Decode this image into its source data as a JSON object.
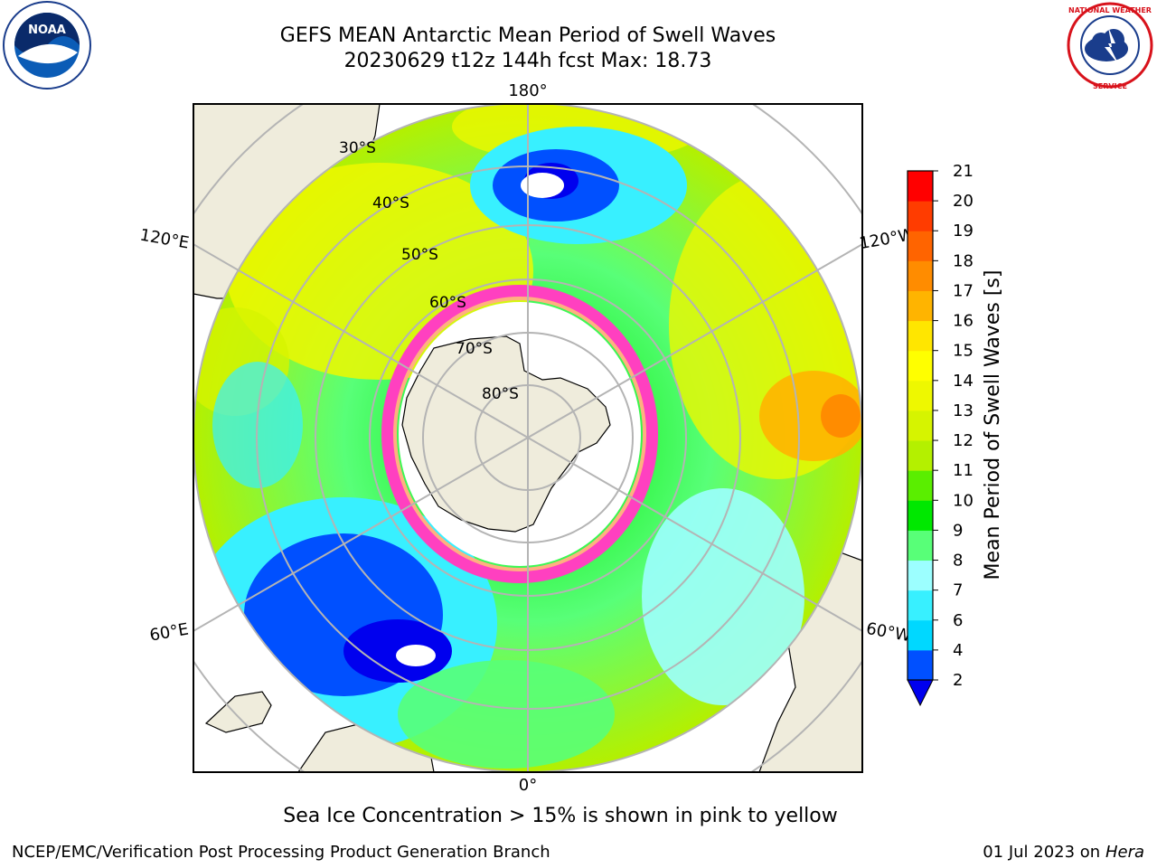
{
  "header": {
    "title_line1": "GEFS MEAN Antarctic Mean Period of Swell Waves",
    "title_line2": "20230629 t12z 144h fcst   Max: 18.73"
  },
  "map": {
    "projection": "south-polar-stereographic",
    "longitude_labels": {
      "top": "180°",
      "bottom": "0°",
      "upper_left": "120°E",
      "upper_right": "120°W",
      "lower_left": "60°E",
      "lower_right": "60°W"
    },
    "latitude_labels": [
      "30°S",
      "40°S",
      "50°S",
      "60°S",
      "70°S",
      "80°S"
    ],
    "land_color": "#efecdc",
    "grid_color": "#b4b4b4"
  },
  "colorbar": {
    "label": "Mean Period of Swell Waves [s]",
    "ticks": [
      "2",
      "4",
      "6",
      "7",
      "8",
      "9",
      "10",
      "11",
      "12",
      "13",
      "14",
      "15",
      "16",
      "17",
      "18",
      "19",
      "20",
      "21"
    ],
    "colors": [
      "#0050ff",
      "#00d8ff",
      "#38f0ff",
      "#9cffff",
      "#58ff78",
      "#00e800",
      "#5aee00",
      "#b4f000",
      "#d6f400",
      "#eef800",
      "#ffff00",
      "#ffe600",
      "#ffb400",
      "#ff8c00",
      "#ff6400",
      "#ff3c00",
      "#ff0000"
    ],
    "extend_color": "#0000ee"
  },
  "caption": "Sea Ice Concentration > 15% is shown in pink to yellow",
  "footer": {
    "left": "NCEP/EMC/Verification Post Processing Product Generation Branch",
    "date": "01 Jul 2023 on ",
    "machine": "Hera"
  },
  "logos": {
    "noaa_text": "NOAA",
    "nws_text": "NATIONAL WEATHER SERVICE"
  }
}
